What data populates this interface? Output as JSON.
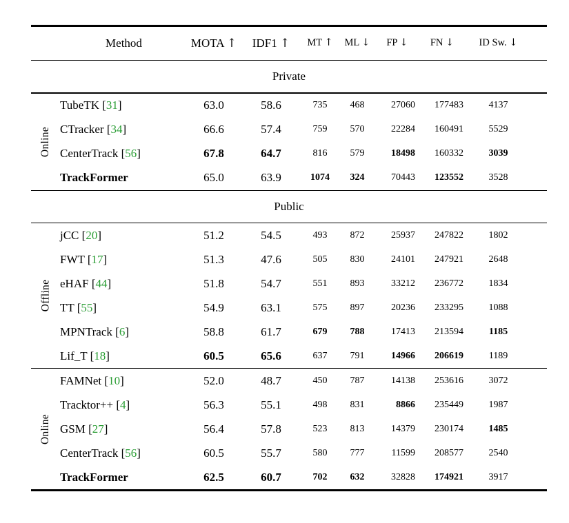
{
  "colors": {
    "citation_green": "#2a9d34",
    "text": "#000000",
    "background": "#ffffff"
  },
  "table": {
    "header": {
      "method_label": "Method",
      "columns": [
        {
          "label": "MOTA",
          "arrow": "↑",
          "size": "large"
        },
        {
          "label": "IDF1",
          "arrow": "↑",
          "size": "large"
        },
        {
          "label": "MT",
          "arrow": "↑",
          "size": "small"
        },
        {
          "label": "ML",
          "arrow": "↓",
          "size": "small"
        },
        {
          "label": "FP",
          "arrow": "↓",
          "size": "small"
        },
        {
          "label": "FN",
          "arrow": "↓",
          "size": "small"
        },
        {
          "label": "ID Sw.",
          "arrow": "↓",
          "size": "small"
        }
      ]
    },
    "sections": [
      {
        "title": "Private",
        "groups": [
          {
            "side_label": "Online",
            "rows": [
              {
                "method": "TubeTK",
                "cite": "31",
                "bold_method": false,
                "values": [
                  "63.0",
                  "58.6",
                  "735",
                  "468",
                  "27060",
                  "177483",
                  "4137"
                ],
                "bold": [
                  0,
                  0,
                  0,
                  0,
                  0,
                  0,
                  0
                ]
              },
              {
                "method": "CTracker",
                "cite": "34",
                "bold_method": false,
                "values": [
                  "66.6",
                  "57.4",
                  "759",
                  "570",
                  "22284",
                  "160491",
                  "5529"
                ],
                "bold": [
                  0,
                  0,
                  0,
                  0,
                  0,
                  0,
                  0
                ]
              },
              {
                "method": "CenterTrack",
                "cite": "56",
                "bold_method": false,
                "values": [
                  "67.8",
                  "64.7",
                  "816",
                  "579",
                  "18498",
                  "160332",
                  "3039"
                ],
                "bold": [
                  1,
                  1,
                  0,
                  0,
                  1,
                  0,
                  1
                ]
              },
              {
                "method": "TrackFormer",
                "cite": null,
                "bold_method": true,
                "values": [
                  "65.0",
                  "63.9",
                  "1074",
                  "324",
                  "70443",
                  "123552",
                  "3528"
                ],
                "bold": [
                  0,
                  0,
                  1,
                  1,
                  0,
                  1,
                  0
                ]
              }
            ]
          }
        ]
      },
      {
        "title": "Public",
        "groups": [
          {
            "side_label": "Offline",
            "rows": [
              {
                "method": "jCC",
                "cite": "20",
                "bold_method": false,
                "values": [
                  "51.2",
                  "54.5",
                  "493",
                  "872",
                  "25937",
                  "247822",
                  "1802"
                ],
                "bold": [
                  0,
                  0,
                  0,
                  0,
                  0,
                  0,
                  0
                ]
              },
              {
                "method": "FWT",
                "cite": "17",
                "bold_method": false,
                "values": [
                  "51.3",
                  "47.6",
                  "505",
                  "830",
                  "24101",
                  "247921",
                  "2648"
                ],
                "bold": [
                  0,
                  0,
                  0,
                  0,
                  0,
                  0,
                  0
                ]
              },
              {
                "method": "eHAF",
                "cite": "44",
                "bold_method": false,
                "values": [
                  "51.8",
                  "54.7",
                  "551",
                  "893",
                  "33212",
                  "236772",
                  "1834"
                ],
                "bold": [
                  0,
                  0,
                  0,
                  0,
                  0,
                  0,
                  0
                ]
              },
              {
                "method": "TT",
                "cite": "55",
                "bold_method": false,
                "values": [
                  "54.9",
                  "63.1",
                  "575",
                  "897",
                  "20236",
                  "233295",
                  "1088"
                ],
                "bold": [
                  0,
                  0,
                  0,
                  0,
                  0,
                  0,
                  0
                ]
              },
              {
                "method": "MPNTrack",
                "cite": "6",
                "bold_method": false,
                "values": [
                  "58.8",
                  "61.7",
                  "679",
                  "788",
                  "17413",
                  "213594",
                  "1185"
                ],
                "bold": [
                  0,
                  0,
                  1,
                  1,
                  0,
                  0,
                  1
                ]
              },
              {
                "method": "Lif_T",
                "cite": "18",
                "bold_method": false,
                "values": [
                  "60.5",
                  "65.6",
                  "637",
                  "791",
                  "14966",
                  "206619",
                  "1189"
                ],
                "bold": [
                  1,
                  1,
                  0,
                  0,
                  1,
                  1,
                  0
                ]
              }
            ]
          },
          {
            "side_label": "Online",
            "rows": [
              {
                "method": "FAMNet",
                "cite": "10",
                "bold_method": false,
                "values": [
                  "52.0",
                  "48.7",
                  "450",
                  "787",
                  "14138",
                  "253616",
                  "3072"
                ],
                "bold": [
                  0,
                  0,
                  0,
                  0,
                  0,
                  0,
                  0
                ]
              },
              {
                "method": "Tracktor++",
                "cite": "4",
                "bold_method": false,
                "values": [
                  "56.3",
                  "55.1",
                  "498",
                  "831",
                  "8866",
                  "235449",
                  "1987"
                ],
                "bold": [
                  0,
                  0,
                  0,
                  0,
                  1,
                  0,
                  0
                ]
              },
              {
                "method": "GSM",
                "cite": "27",
                "bold_method": false,
                "values": [
                  "56.4",
                  "57.8",
                  "523",
                  "813",
                  "14379",
                  "230174",
                  "1485"
                ],
                "bold": [
                  0,
                  0,
                  0,
                  0,
                  0,
                  0,
                  1
                ]
              },
              {
                "method": "CenterTrack",
                "cite": "56",
                "bold_method": false,
                "values": [
                  "60.5",
                  "55.7",
                  "580",
                  "777",
                  "11599",
                  "208577",
                  "2540"
                ],
                "bold": [
                  0,
                  0,
                  0,
                  0,
                  0,
                  0,
                  0
                ]
              },
              {
                "method": "TrackFormer",
                "cite": null,
                "bold_method": true,
                "values": [
                  "62.5",
                  "60.7",
                  "702",
                  "632",
                  "32828",
                  "174921",
                  "3917"
                ],
                "bold": [
                  1,
                  1,
                  1,
                  1,
                  0,
                  1,
                  0
                ]
              }
            ]
          }
        ]
      }
    ]
  }
}
